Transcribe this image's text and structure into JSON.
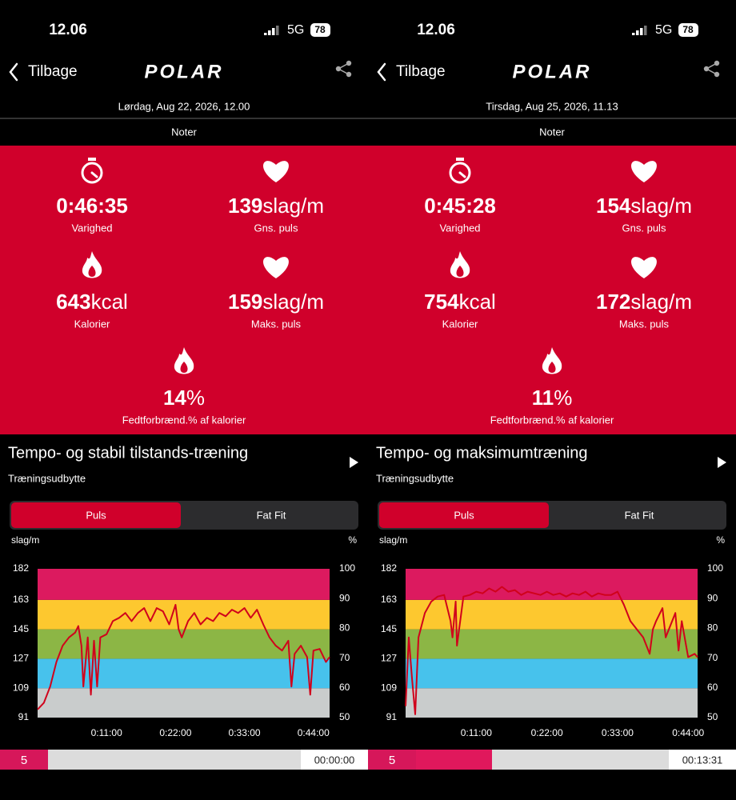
{
  "screens": [
    {
      "status": {
        "time": "12.06",
        "network": "5G",
        "battery": "78"
      },
      "nav": {
        "back": "Tilbage",
        "brand": "POLAR"
      },
      "date": "Lørdag, Aug 22, 2026, 12.00",
      "notes": "Noter",
      "stats": [
        {
          "value": "0:46:35",
          "label": "Varighed",
          "icon": "stopwatch"
        },
        {
          "value": "139",
          "unit": "slag/m",
          "label": "Gns. puls",
          "icon": "heart"
        },
        {
          "value": "643",
          "unit": "kcal",
          "label": "Kalorier",
          "icon": "flame"
        },
        {
          "value": "159",
          "unit": "slag/m",
          "label": "Maks. puls",
          "icon": "heart"
        },
        {
          "value": "14",
          "unit": "%",
          "label": "Fedtforbrænd.% af kalorier",
          "icon": "flame"
        }
      ],
      "workout": {
        "title": "Tempo- og stabil tilstands-træning",
        "subtitle": "Træningsudbytte"
      },
      "tabs": [
        "Puls",
        "Fat Fit"
      ],
      "chart": {
        "type": "line",
        "y_label": "slag/m",
        "y2_label": "%",
        "ylim": [
          91,
          182
        ],
        "yticks": [
          91,
          109,
          127,
          145,
          163,
          182
        ],
        "y2lim": [
          50,
          100
        ],
        "y2ticks": [
          50,
          60,
          70,
          80,
          90,
          100
        ],
        "zone_colors": [
          "#c9cccc",
          "#47c2ec",
          "#8cb645",
          "#fdc82f",
          "#dc1a5f"
        ],
        "xlim": [
          0,
          2795
        ],
        "xticks": [
          {
            "value": 660,
            "label": "0:11:00"
          },
          {
            "value": 1320,
            "label": "0:22:00"
          },
          {
            "value": 1980,
            "label": "0:33:00"
          },
          {
            "value": 2640,
            "label": "0:44:00"
          }
        ],
        "series": {
          "color": "#d0021b",
          "x": [
            0,
            60,
            120,
            180,
            240,
            300,
            360,
            390,
            420,
            438,
            480,
            510,
            540,
            570,
            600,
            660,
            720,
            780,
            840,
            900,
            960,
            1020,
            1080,
            1140,
            1200,
            1260,
            1320,
            1350,
            1380,
            1440,
            1500,
            1560,
            1620,
            1680,
            1740,
            1800,
            1860,
            1920,
            1980,
            2040,
            2100,
            2160,
            2220,
            2280,
            2340,
            2400,
            2430,
            2460,
            2520,
            2580,
            2610,
            2640,
            2700,
            2760,
            2795
          ],
          "values": [
            96,
            100,
            110,
            125,
            135,
            140,
            143,
            147,
            135,
            110,
            140,
            105,
            138,
            110,
            140,
            142,
            150,
            152,
            155,
            150,
            155,
            158,
            150,
            158,
            156,
            148,
            160,
            145,
            140,
            150,
            155,
            148,
            152,
            150,
            155,
            153,
            157,
            155,
            158,
            152,
            157,
            148,
            140,
            135,
            132,
            138,
            110,
            130,
            135,
            128,
            105,
            132,
            133,
            125,
            128
          ]
        }
      },
      "player": {
        "zone": "5",
        "position": "00:00:00"
      }
    },
    {
      "status": {
        "time": "12.06",
        "network": "5G",
        "battery": "78"
      },
      "nav": {
        "back": "Tilbage",
        "brand": "POLAR"
      },
      "date": "Tirsdag, Aug 25, 2026, 11.13",
      "notes": "Noter",
      "stats": [
        {
          "value": "0:45:28",
          "label": "Varighed",
          "icon": "stopwatch"
        },
        {
          "value": "154",
          "unit": "slag/m",
          "label": "Gns. puls",
          "icon": "heart"
        },
        {
          "value": "754",
          "unit": "kcal",
          "label": "Kalorier",
          "icon": "flame"
        },
        {
          "value": "172",
          "unit": "slag/m",
          "label": "Maks. puls",
          "icon": "heart"
        },
        {
          "value": "11",
          "unit": "%",
          "label": "Fedtforbrænd.% af kalorier",
          "icon": "flame"
        }
      ],
      "workout": {
        "title": "Tempo- og maksimumtræning",
        "subtitle": "Træningsudbytte"
      },
      "tabs": [
        "Puls",
        "Fat Fit"
      ],
      "chart": {
        "type": "line",
        "y_label": "slag/m",
        "y2_label": "%",
        "ylim": [
          91,
          182
        ],
        "yticks": [
          91,
          109,
          127,
          145,
          163,
          182
        ],
        "y2lim": [
          50,
          100
        ],
        "y2ticks": [
          50,
          60,
          70,
          80,
          90,
          100
        ],
        "zone_colors": [
          "#c9cccc",
          "#47c2ec",
          "#8cb645",
          "#fdc82f",
          "#dc1a5f"
        ],
        "xlim": [
          0,
          2728
        ],
        "xticks": [
          {
            "value": 660,
            "label": "0:11:00"
          },
          {
            "value": 1320,
            "label": "0:22:00"
          },
          {
            "value": 1980,
            "label": "0:33:00"
          },
          {
            "value": 2640,
            "label": "0:44:00"
          }
        ],
        "series": {
          "color": "#d0021b",
          "x": [
            0,
            30,
            60,
            90,
            120,
            180,
            240,
            300,
            360,
            420,
            438,
            468,
            480,
            540,
            600,
            660,
            720,
            780,
            840,
            900,
            960,
            1020,
            1080,
            1140,
            1200,
            1260,
            1320,
            1380,
            1440,
            1500,
            1560,
            1620,
            1680,
            1740,
            1800,
            1860,
            1920,
            1980,
            2040,
            2100,
            2160,
            2220,
            2280,
            2310,
            2340,
            2400,
            2430,
            2460,
            2520,
            2550,
            2580,
            2640,
            2700,
            2728
          ],
          "values": [
            98,
            140,
            115,
            93,
            140,
            155,
            162,
            165,
            166,
            150,
            140,
            162,
            135,
            165,
            166,
            168,
            167,
            170,
            168,
            171,
            168,
            169,
            166,
            168,
            167,
            166,
            168,
            166,
            167,
            165,
            167,
            166,
            168,
            165,
            167,
            166,
            166,
            168,
            160,
            150,
            145,
            140,
            130,
            145,
            150,
            158,
            140,
            145,
            155,
            132,
            150,
            128,
            130,
            128
          ]
        }
      },
      "player": {
        "zone": "5",
        "position": "00:13:31"
      }
    }
  ]
}
